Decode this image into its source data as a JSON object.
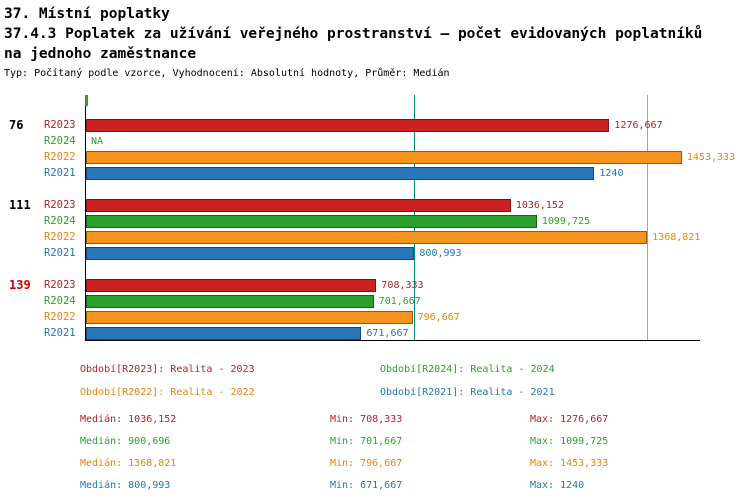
{
  "header": {
    "line1": "37. Místní poplatky",
    "line2": "37.4.3 Poplatek za užívání veřejného prostranství – počet evidovaných poplatníků",
    "line3": "na jednoho zaměstnance",
    "subtitle": "Typ: Počítaný podle vzorce, Vyhodnocení: Absolutní hodnoty, Průměr: Medián"
  },
  "chart_data": {
    "type": "bar",
    "orientation": "horizontal",
    "xlim": [
      0,
      1500
    ],
    "grid": false,
    "axis_color": "#000000",
    "series": [
      {
        "id": "R2023",
        "name": "Období[R2023]: Realita - 2023",
        "bar_color": "#cc2222",
        "text_color": "#b22222"
      },
      {
        "id": "R2024",
        "name": "Období[R2024]: Realita - 2024",
        "bar_color": "#2ca02c",
        "text_color": "#2ca02c"
      },
      {
        "id": "R2022",
        "name": "Období[R2022]: Realita - 2022",
        "bar_color": "#f7941d",
        "text_color": "#ef8200"
      },
      {
        "id": "R2021",
        "name": "Období[R2021]: Realita - 2021",
        "bar_color": "#2878b9",
        "text_color": "#1f77b4"
      }
    ],
    "groups": [
      {
        "label": "76",
        "label_color": "#000000",
        "bars": [
          {
            "series": "R2023",
            "value": 1276.667,
            "label": "1276,667"
          },
          {
            "series": "R2024",
            "value": null,
            "label": "NA"
          },
          {
            "series": "R2022",
            "value": 1453.333,
            "label": "1453,333"
          },
          {
            "series": "R2021",
            "value": 1240,
            "label": "1240"
          }
        ]
      },
      {
        "label": "111",
        "label_color": "#000000",
        "bars": [
          {
            "series": "R2023",
            "value": 1036.152,
            "label": "1036,152"
          },
          {
            "series": "R2024",
            "value": 1099.725,
            "label": "1099,725"
          },
          {
            "series": "R2022",
            "value": 1368.821,
            "label": "1368,821"
          },
          {
            "series": "R2021",
            "value": 800.993,
            "label": "800,993"
          }
        ]
      },
      {
        "label": "139",
        "label_color": "#cc0000",
        "bars": [
          {
            "series": "R2023",
            "value": 708.333,
            "label": "708,333"
          },
          {
            "series": "R2024",
            "value": 701.667,
            "label": "701,667"
          },
          {
            "series": "R2022",
            "value": 796.667,
            "label": "796,667"
          },
          {
            "series": "R2021",
            "value": 671.667,
            "label": "671,667"
          }
        ]
      }
    ],
    "reference_lines": [
      {
        "series": "R2021",
        "value": 800.993,
        "color": "#008b8b"
      },
      {
        "series": "R2022",
        "value": 1368.821,
        "color": "#f7941d"
      }
    ],
    "stats": {
      "median": {
        "R2023": 1036.152,
        "R2024": 900.696,
        "R2022": 1368.821,
        "R2021": 800.993
      },
      "min": {
        "R2023": 708.333,
        "R2024": 701.667,
        "R2022": 796.667,
        "R2021": 671.667
      },
      "max": {
        "R2023": 1276.667,
        "R2024": 1099.725,
        "R2022": 1453.333,
        "R2021": 1240
      }
    }
  },
  "legend": {
    "items": [
      {
        "series": "R2023",
        "text": "Období[R2023]: Realita - 2023",
        "color": "#b22222"
      },
      {
        "series": "R2024",
        "text": "Období[R2024]: Realita - 2024",
        "color": "#2ca02c"
      },
      {
        "series": "R2022",
        "text": "Období[R2022]: Realita - 2022",
        "color": "#ef8200"
      },
      {
        "series": "R2021",
        "text": "Období[R2021]: Realita - 2021",
        "color": "#1f77b4"
      }
    ]
  },
  "stats_panel": {
    "rows": [
      {
        "series": "R2023",
        "color": "#b22222",
        "median": "Medián: 1036,152",
        "min": "Min: 708,333",
        "max": "Max: 1276,667"
      },
      {
        "series": "R2024",
        "color": "#2ca02c",
        "median": "Medián: 900,696",
        "min": "Min: 701,667",
        "max": "Max: 1099,725"
      },
      {
        "series": "R2022",
        "color": "#ef8200",
        "median": "Medián: 1368,821",
        "min": "Min: 796,667",
        "max": "Max: 1453,333"
      },
      {
        "series": "R2021",
        "color": "#1f77b4",
        "median": "Medián: 800,993",
        "min": "Min: 671,667",
        "max": "Max: 1240"
      }
    ]
  }
}
